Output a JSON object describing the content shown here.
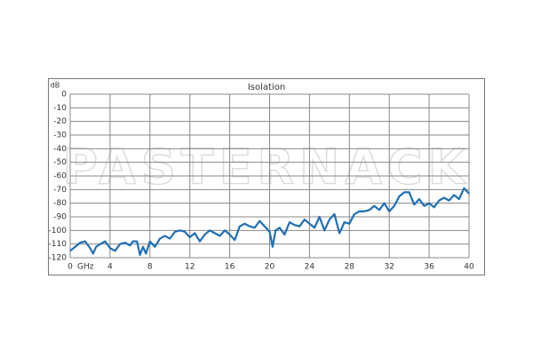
{
  "chart_data": {
    "type": "line",
    "title": "Isolation",
    "y_label": "dB",
    "x_label": "GHz",
    "watermark": "PASTERNACK",
    "x": [
      0,
      0.5,
      1,
      1.5,
      2,
      2.3,
      2.6,
      3,
      3.5,
      4,
      4.5,
      5,
      5.5,
      6,
      6.3,
      6.7,
      7,
      7.3,
      7.6,
      8,
      8.5,
      9,
      9.5,
      10,
      10.5,
      11,
      11.5,
      12,
      12.5,
      13,
      13.5,
      14,
      14.5,
      15,
      15.5,
      16,
      16.5,
      17,
      17.5,
      18,
      18.5,
      19,
      19.5,
      20,
      20.3,
      20.6,
      21,
      21.5,
      22,
      22.5,
      23,
      23.5,
      24,
      24.5,
      25,
      25.5,
      26,
      26.5,
      27,
      27.5,
      28,
      28.5,
      29,
      29.5,
      30,
      30.5,
      31,
      31.5,
      32,
      32.5,
      33,
      33.5,
      34,
      34.5,
      35,
      35.5,
      36,
      36.5,
      37,
      37.5,
      38,
      38.5,
      39,
      39.5,
      40
    ],
    "series": [
      {
        "name": "Isolation",
        "color": "#1f6fb4",
        "values": [
          -115,
          -112,
          -109,
          -108,
          -113,
          -117,
          -112,
          -110,
          -108,
          -113,
          -115,
          -110,
          -109,
          -111,
          -108,
          -108,
          -118,
          -112,
          -117,
          -108,
          -112,
          -106,
          -104,
          -106,
          -101,
          -100,
          -101,
          -105,
          -102,
          -108,
          -103,
          -100,
          -102,
          -104,
          -100,
          -103,
          -107,
          -97,
          -95,
          -97,
          -98,
          -93,
          -97,
          -101,
          -112,
          -100,
          -98,
          -103,
          -94,
          -96,
          -97,
          -92,
          -95,
          -98,
          -90,
          -100,
          -92,
          -88,
          -102,
          -94,
          -95,
          -88,
          -86,
          -86,
          -85,
          -82,
          -85,
          -80,
          -86,
          -82,
          -75,
          -72,
          -72,
          -81,
          -77,
          -82,
          -80,
          -83,
          -78,
          -76,
          -78,
          -74,
          -77,
          -69,
          -73
        ]
      }
    ],
    "xlim": [
      0,
      40
    ],
    "xticks": [
      0,
      4,
      8,
      12,
      16,
      20,
      24,
      28,
      32,
      36,
      40
    ],
    "ylim": [
      -120,
      0
    ],
    "yticks": [
      -120,
      -110,
      -100,
      -90,
      -80,
      -70,
      -60,
      -50,
      -40,
      -30,
      -20,
      -10,
      0
    ],
    "grid": true
  }
}
